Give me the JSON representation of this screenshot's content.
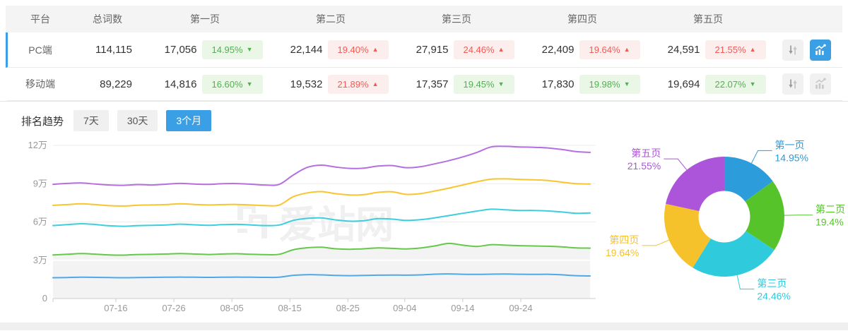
{
  "table": {
    "headers": [
      "平台",
      "总词数",
      "第一页",
      "第二页",
      "第三页",
      "第四页",
      "第五页"
    ],
    "rows": [
      {
        "platform": "PC端",
        "total": "114,115",
        "selected": true,
        "chart_active": true,
        "pages": [
          {
            "count": "17,056",
            "pct": "14.95%",
            "dir": "down"
          },
          {
            "count": "22,144",
            "pct": "19.40%",
            "dir": "up"
          },
          {
            "count": "27,915",
            "pct": "24.46%",
            "dir": "up"
          },
          {
            "count": "22,409",
            "pct": "19.64%",
            "dir": "up"
          },
          {
            "count": "24,591",
            "pct": "21.55%",
            "dir": "up"
          }
        ]
      },
      {
        "platform": "移动端",
        "total": "89,229",
        "selected": false,
        "chart_active": false,
        "pages": [
          {
            "count": "14,816",
            "pct": "16.60%",
            "dir": "down"
          },
          {
            "count": "19,532",
            "pct": "21.89%",
            "dir": "up"
          },
          {
            "count": "17,357",
            "pct": "19.45%",
            "dir": "down"
          },
          {
            "count": "17,830",
            "pct": "19.98%",
            "dir": "down"
          },
          {
            "count": "19,694",
            "pct": "22.07%",
            "dir": "down"
          }
        ]
      }
    ]
  },
  "trend": {
    "label": "排名趋势",
    "tabs": [
      {
        "label": "7天",
        "active": false
      },
      {
        "label": "30天",
        "active": false
      },
      {
        "label": "3个月",
        "active": true
      }
    ]
  },
  "watermark": {
    "text": "爱站网",
    "color": "#f0f0f0"
  },
  "colors": {
    "accent_blue": "#3b9fe5",
    "badge_up_text": "#f25a55",
    "badge_down_text": "#52b052",
    "axis_label": "#999999",
    "grid_line": "#ededed",
    "area_fill": "#f3f3f3"
  },
  "chart_data": [
    {
      "type": "line",
      "title": "排名趋势 3个月",
      "unit": "万",
      "ylim": [
        0,
        12
      ],
      "yticks": [
        {
          "label": "0",
          "value": 0
        },
        {
          "label": "3万",
          "value": 3
        },
        {
          "label": "6万",
          "value": 6
        },
        {
          "label": "9万",
          "value": 9
        },
        {
          "label": "12万",
          "value": 12
        }
      ],
      "xticks": [
        {
          "label": "07-16",
          "f": 0.117
        },
        {
          "label": "07-26",
          "f": 0.225
        },
        {
          "label": "08-05",
          "f": 0.333
        },
        {
          "label": "08-15",
          "f": 0.441
        },
        {
          "label": "08-25",
          "f": 0.549
        },
        {
          "label": "09-04",
          "f": 0.655
        },
        {
          "label": "09-14",
          "f": 0.763
        },
        {
          "label": "09-24",
          "f": 0.871
        }
      ],
      "grid": true,
      "legend": false,
      "series": [
        {
          "name": "purple",
          "color": "#b46fe0",
          "area": false,
          "values": [
            8.95,
            9.02,
            9.05,
            8.97,
            8.9,
            8.87,
            8.93,
            8.9,
            8.96,
            9.02,
            8.97,
            8.94,
            9.0,
            9.01,
            8.96,
            8.9,
            8.94,
            9.68,
            10.28,
            10.45,
            10.3,
            10.2,
            10.22,
            10.38,
            10.42,
            10.25,
            10.33,
            10.55,
            10.8,
            11.1,
            11.45,
            11.88,
            11.92,
            11.88,
            11.85,
            11.8,
            11.68,
            11.52,
            11.45
          ]
        },
        {
          "name": "yellow",
          "color": "#f8c52f",
          "area": false,
          "values": [
            7.3,
            7.36,
            7.42,
            7.36,
            7.28,
            7.25,
            7.31,
            7.33,
            7.36,
            7.42,
            7.37,
            7.33,
            7.36,
            7.37,
            7.33,
            7.29,
            7.32,
            7.98,
            8.28,
            8.38,
            8.22,
            8.12,
            8.14,
            8.32,
            8.36,
            8.16,
            8.22,
            8.42,
            8.65,
            8.9,
            9.15,
            9.35,
            9.38,
            9.33,
            9.3,
            9.25,
            9.12,
            9.0,
            8.97
          ]
        },
        {
          "name": "cyan",
          "color": "#3ccedc",
          "area": false,
          "values": [
            5.72,
            5.79,
            5.86,
            5.8,
            5.7,
            5.66,
            5.72,
            5.74,
            5.77,
            5.83,
            5.78,
            5.74,
            5.79,
            5.81,
            5.77,
            5.72,
            5.76,
            6.12,
            6.28,
            6.32,
            6.16,
            6.06,
            6.1,
            6.26,
            6.22,
            6.12,
            6.18,
            6.32,
            6.5,
            6.68,
            6.85,
            7.0,
            6.95,
            6.9,
            6.9,
            6.86,
            6.78,
            6.68,
            6.71
          ]
        },
        {
          "name": "green",
          "color": "#66c84a",
          "area": true,
          "values": [
            3.42,
            3.47,
            3.52,
            3.48,
            3.42,
            3.4,
            3.45,
            3.46,
            3.49,
            3.53,
            3.49,
            3.45,
            3.49,
            3.51,
            3.47,
            3.44,
            3.47,
            3.82,
            3.98,
            4.02,
            3.9,
            3.86,
            3.9,
            3.97,
            3.93,
            3.89,
            3.96,
            4.12,
            4.32,
            4.18,
            4.08,
            4.22,
            4.18,
            4.14,
            4.12,
            4.1,
            4.05,
            3.97,
            3.95
          ]
        },
        {
          "name": "blue",
          "color": "#4fa8e8",
          "area": false,
          "values": [
            1.63,
            1.65,
            1.67,
            1.66,
            1.64,
            1.63,
            1.65,
            1.66,
            1.67,
            1.68,
            1.67,
            1.66,
            1.67,
            1.68,
            1.67,
            1.66,
            1.67,
            1.82,
            1.87,
            1.85,
            1.81,
            1.79,
            1.81,
            1.83,
            1.84,
            1.83,
            1.85,
            1.91,
            1.93,
            1.9,
            1.89,
            1.91,
            1.92,
            1.9,
            1.89,
            1.9,
            1.86,
            1.79,
            1.77
          ]
        }
      ]
    },
    {
      "type": "pie",
      "title": "页面分布",
      "donut": true,
      "slices": [
        {
          "name": "第一页",
          "pct_label": "14.95%",
          "value": 14.95,
          "color": "#2d9cdb"
        },
        {
          "name": "第二页",
          "pct_label": "19.4%",
          "value": 19.4,
          "color": "#56c32b"
        },
        {
          "name": "第三页",
          "pct_label": "24.46%",
          "value": 24.46,
          "color": "#2fcbdc"
        },
        {
          "name": "第四页",
          "pct_label": "19.64%",
          "value": 19.64,
          "color": "#f5c22c"
        },
        {
          "name": "第五页",
          "pct_label": "21.55%",
          "value": 21.55,
          "color": "#ac55db"
        }
      ]
    }
  ]
}
